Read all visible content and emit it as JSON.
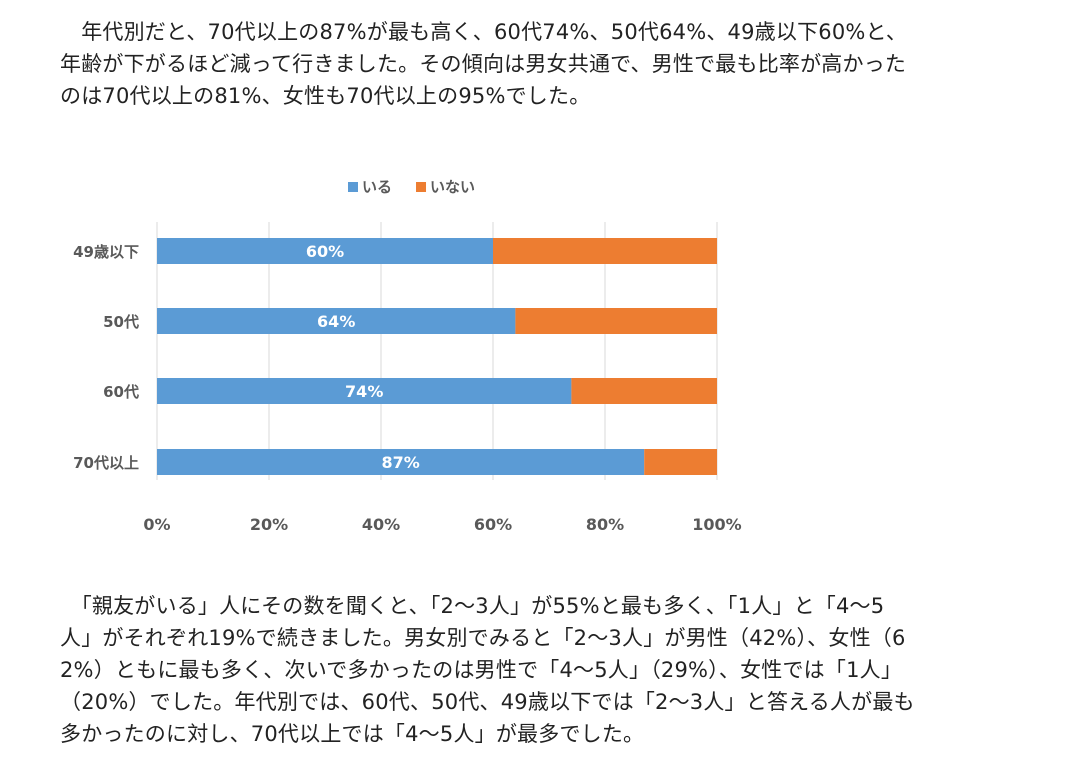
{
  "paragraph_top": {
    "lines": [
      "　年代別だと、70代以上の87%が最も高く、60代74%、50代64%、49歳以下60%と、",
      "年齢が下がるほど減って行きました。その傾向は男女共通で、男性で最も比率が高かった",
      "のは70代以上の81%、女性も70代以上の95%でした。"
    ]
  },
  "paragraph_bottom": {
    "lines": [
      "　「親友がいる」人にその数を聞くと、「2〜3人」が55%と最も多く、「1人」と「4〜5",
      "人」がそれぞれ19%で続きました。男女別でみると「2〜3人」が男性（42%）、女性（6",
      "2%）ともに最も多く、次いで多かったのは男性で「4〜5人」（29%）、女性では「1人」",
      "（20%）でした。年代別では、60代、50代、49歳以下では「2〜3人」と答える人が最も",
      "多かったのに対し、70代以上では「4〜5人」が最多でした。"
    ]
  },
  "chart_data": {
    "type": "bar",
    "orientation": "horizontal",
    "stacked": true,
    "categories": [
      "49歳以下",
      "50代",
      "60代",
      "70代以上"
    ],
    "series": [
      {
        "name": "いる",
        "values": [
          60,
          64,
          74,
          87
        ],
        "color": "#5b9bd5",
        "labels": [
          "60%",
          "64%",
          "74%",
          "87%"
        ]
      },
      {
        "name": "いない",
        "values": [
          40,
          36,
          26,
          13
        ],
        "color": "#ed7d31"
      }
    ],
    "xlim": [
      0,
      100
    ],
    "x_ticks": [
      "0%",
      "20%",
      "40%",
      "60%",
      "80%",
      "100%"
    ],
    "grid": true,
    "legend": "top-center"
  }
}
